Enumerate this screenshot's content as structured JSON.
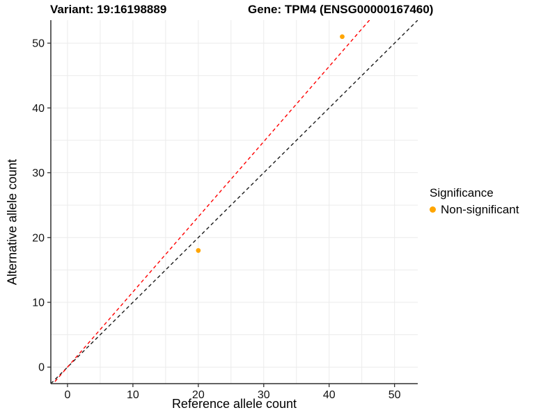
{
  "chart_data": {
    "type": "scatter",
    "title_left": "Variant: 19:16198889",
    "title_right": "Gene: TPM4 (ENSG00000167460)",
    "xlabel": "Reference allele count",
    "ylabel": "Alternative allele count",
    "xlim": [
      -2.55,
      53.55
    ],
    "ylim": [
      -2.55,
      53.55
    ],
    "x_ticks": [
      0,
      10,
      20,
      30,
      40,
      50
    ],
    "y_ticks": [
      0,
      10,
      20,
      30,
      40,
      50
    ],
    "grid_step": 5,
    "grid_max": 50,
    "points": [
      {
        "x": 20,
        "y": 18,
        "significance": "Non-significant"
      },
      {
        "x": 42,
        "y": 51,
        "significance": "Non-significant"
      }
    ],
    "lines": [
      {
        "name": "identity-line",
        "slope": 1.0,
        "intercept": 0,
        "color": "#1A1A1A"
      },
      {
        "name": "ratio-line",
        "slope": 1.16,
        "intercept": 0,
        "color": "#FF0000"
      }
    ],
    "legend": {
      "title": "Significance",
      "items": [
        {
          "label": "Non-significant",
          "color": "#FFA500"
        }
      ]
    },
    "colors": {
      "point": "#FFA500",
      "grid": "#EBEBEB",
      "axis": "#2F2F2F",
      "text": "#000000",
      "background": "#FFFFFF"
    }
  }
}
